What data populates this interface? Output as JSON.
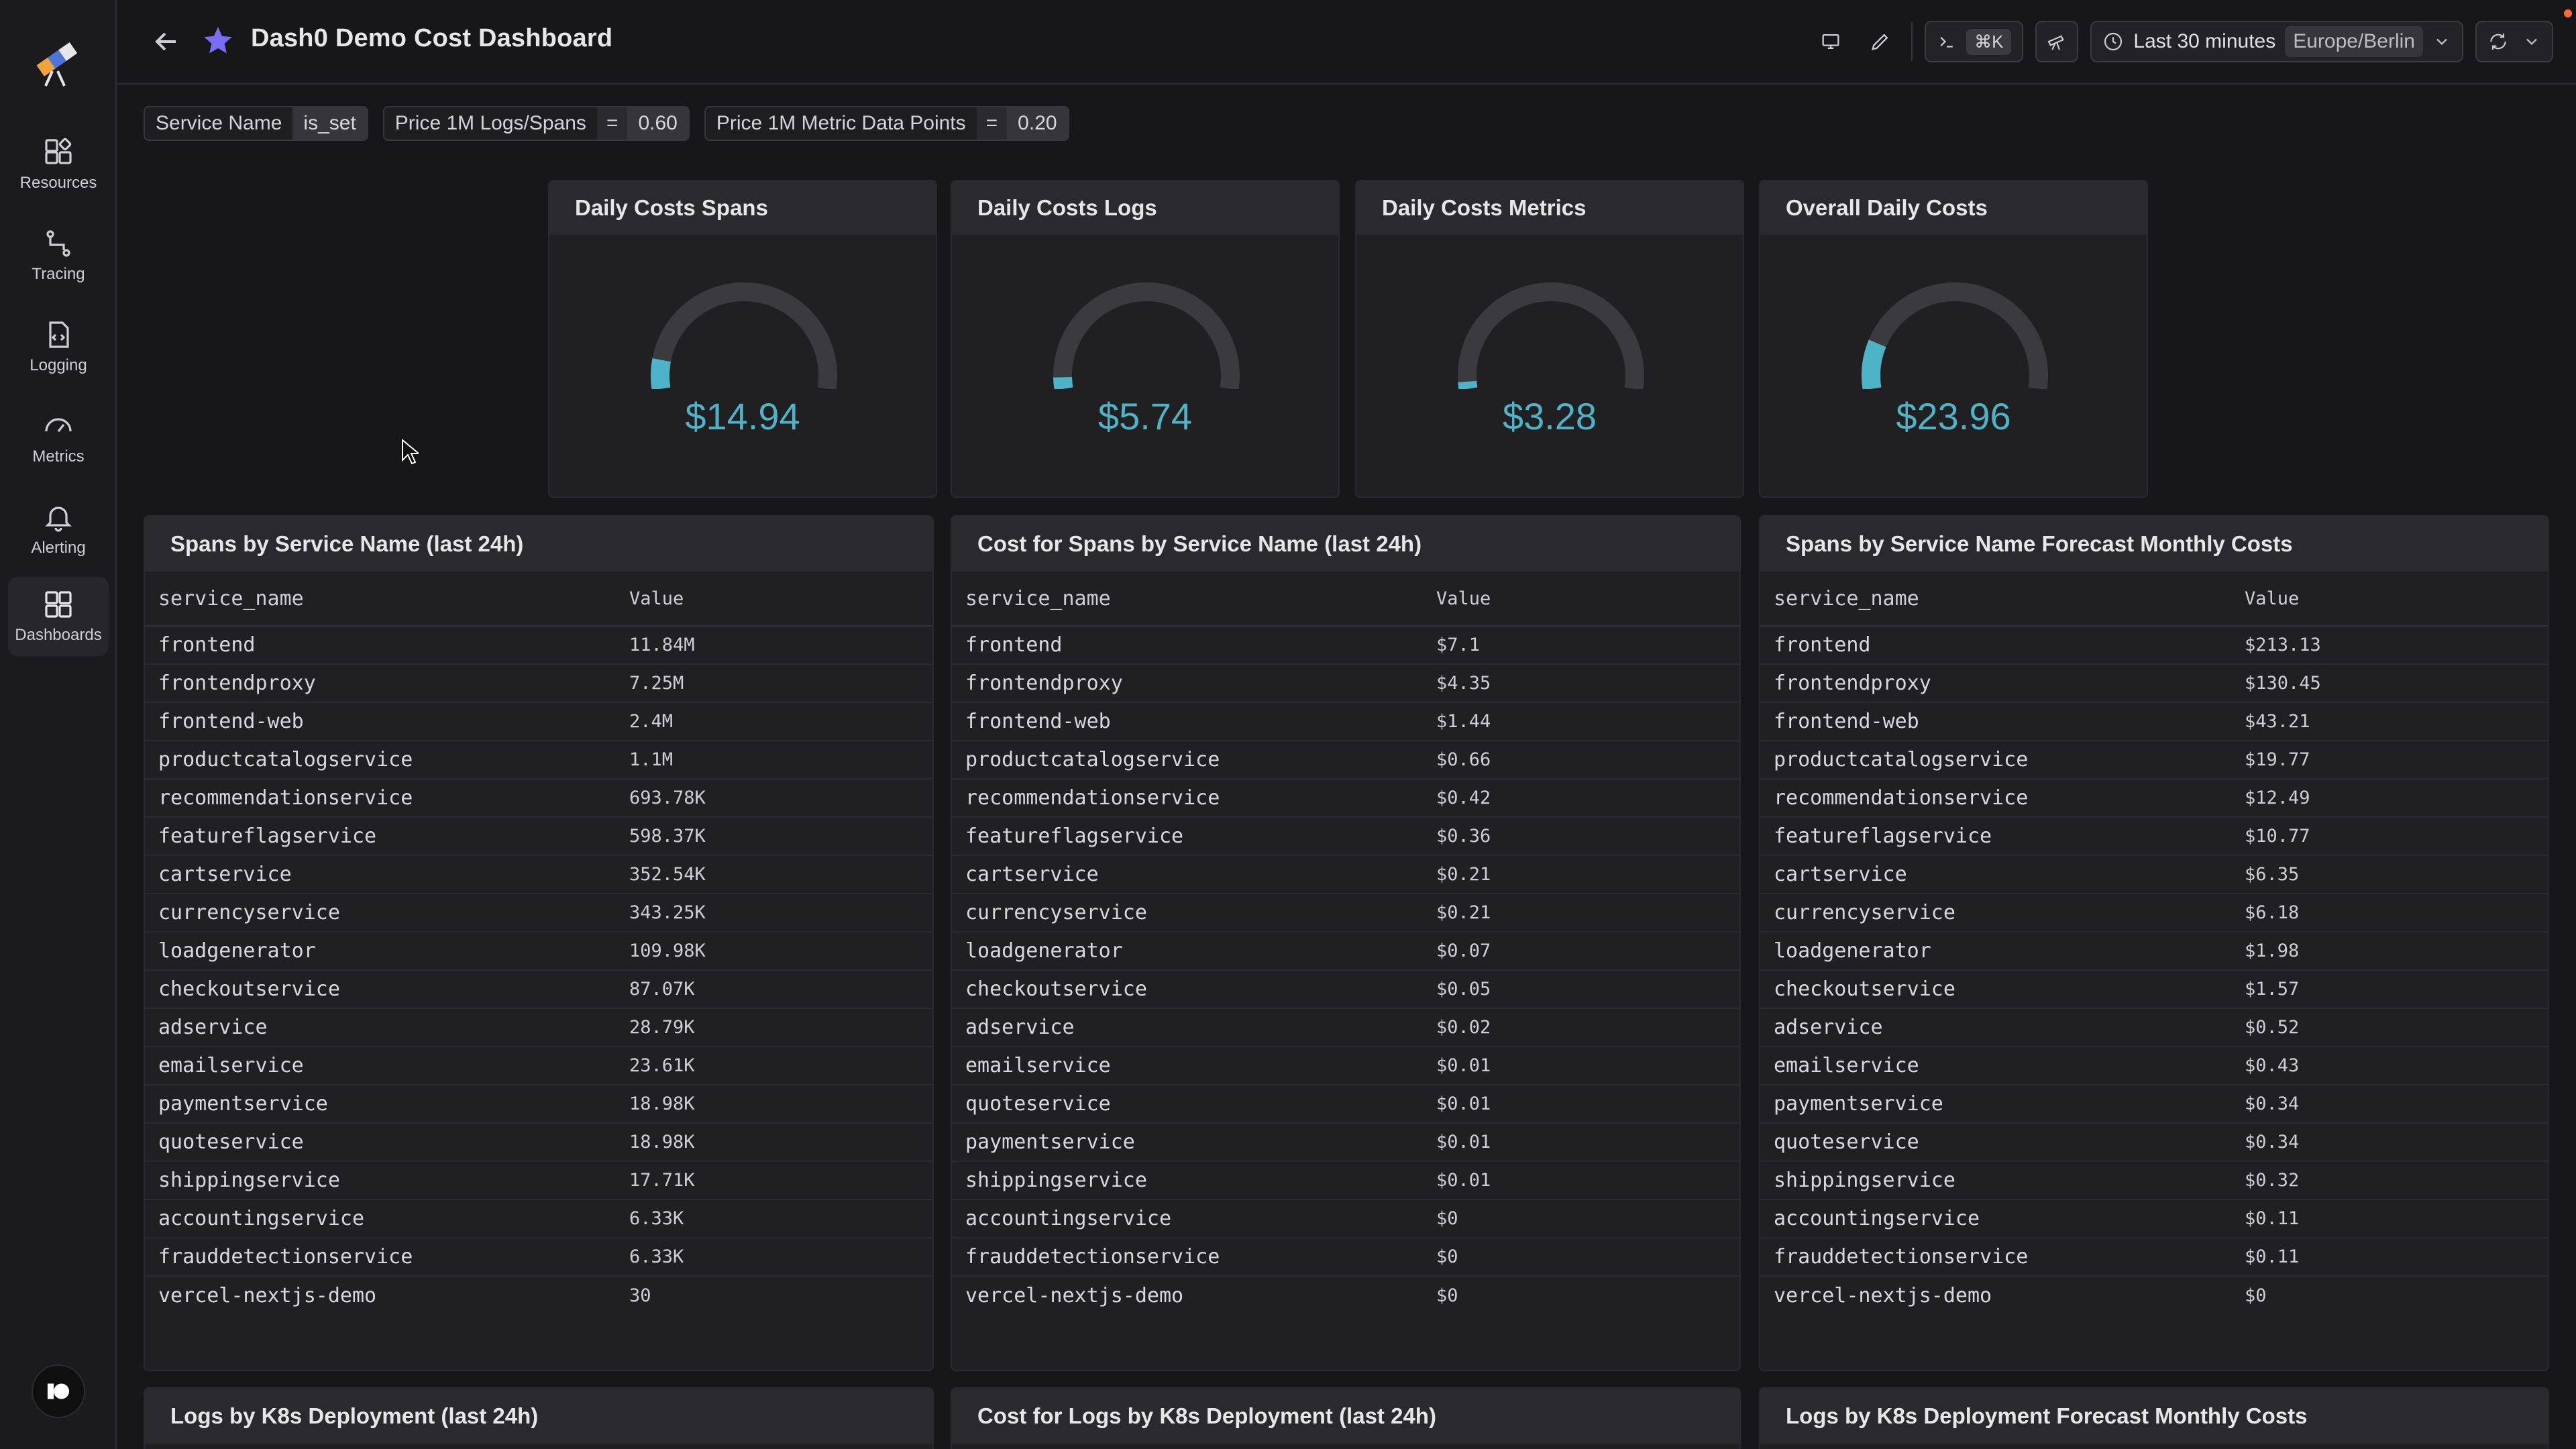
{
  "sidebar": {
    "items": [
      {
        "label": "Resources",
        "icon": "resources-icon"
      },
      {
        "label": "Tracing",
        "icon": "tracing-icon"
      },
      {
        "label": "Logging",
        "icon": "logging-icon"
      },
      {
        "label": "Metrics",
        "icon": "metrics-icon"
      },
      {
        "label": "Alerting",
        "icon": "alerting-icon"
      },
      {
        "label": "Dashboards",
        "icon": "dashboards-icon",
        "active": true
      }
    ]
  },
  "header": {
    "title": "Dash0 Demo Cost Dashboard",
    "shortcut": "⌘K",
    "time_range": "Last 30 minutes",
    "timezone": "Europe/Berlin"
  },
  "variables": [
    {
      "name": "Service Name",
      "op": "",
      "value": "is_set"
    },
    {
      "name": "Price 1M Logs/Spans",
      "op": "=",
      "value": "0.60"
    },
    {
      "name": "Price 1M Metric Data Points",
      "op": "=",
      "value": "0.20"
    }
  ],
  "gauges": [
    {
      "title": "Daily Costs Spans",
      "value": "$14.94",
      "fraction": 0.1
    },
    {
      "title": "Daily Costs Logs",
      "value": "$5.74",
      "fraction": 0.04
    },
    {
      "title": "Daily Costs Metrics",
      "value": "$3.28",
      "fraction": 0.025
    },
    {
      "title": "Overall Daily Costs",
      "value": "$23.96",
      "fraction": 0.16
    }
  ],
  "tables": [
    {
      "title": "Spans by Service Name (last 24h)",
      "col1": "service_name",
      "col2": "Value",
      "rows": [
        [
          "frontend",
          "11.84M"
        ],
        [
          "frontendproxy",
          "7.25M"
        ],
        [
          "frontend-web",
          "2.4M"
        ],
        [
          "productcatalogservice",
          "1.1M"
        ],
        [
          "recommendationservice",
          "693.78K"
        ],
        [
          "featureflagservice",
          "598.37K"
        ],
        [
          "cartservice",
          "352.54K"
        ],
        [
          "currencyservice",
          "343.25K"
        ],
        [
          "loadgenerator",
          "109.98K"
        ],
        [
          "checkoutservice",
          "87.07K"
        ],
        [
          "adservice",
          "28.79K"
        ],
        [
          "emailservice",
          "23.61K"
        ],
        [
          "paymentservice",
          "18.98K"
        ],
        [
          "quoteservice",
          "18.98K"
        ],
        [
          "shippingservice",
          "17.71K"
        ],
        [
          "accountingservice",
          "6.33K"
        ],
        [
          "frauddetectionservice",
          "6.33K"
        ],
        [
          "vercel-nextjs-demo",
          "30"
        ]
      ]
    },
    {
      "title": "Cost for Spans by Service Name (last 24h)",
      "col1": "service_name",
      "col2": "Value",
      "rows": [
        [
          "frontend",
          "$7.1"
        ],
        [
          "frontendproxy",
          "$4.35"
        ],
        [
          "frontend-web",
          "$1.44"
        ],
        [
          "productcatalogservice",
          "$0.66"
        ],
        [
          "recommendationservice",
          "$0.42"
        ],
        [
          "featureflagservice",
          "$0.36"
        ],
        [
          "cartservice",
          "$0.21"
        ],
        [
          "currencyservice",
          "$0.21"
        ],
        [
          "loadgenerator",
          "$0.07"
        ],
        [
          "checkoutservice",
          "$0.05"
        ],
        [
          "adservice",
          "$0.02"
        ],
        [
          "emailservice",
          "$0.01"
        ],
        [
          "quoteservice",
          "$0.01"
        ],
        [
          "paymentservice",
          "$0.01"
        ],
        [
          "shippingservice",
          "$0.01"
        ],
        [
          "accountingservice",
          "$0"
        ],
        [
          "frauddetectionservice",
          "$0"
        ],
        [
          "vercel-nextjs-demo",
          "$0"
        ]
      ]
    },
    {
      "title": "Spans by Service Name Forecast Monthly Costs",
      "col1": "service_name",
      "col2": "Value",
      "rows": [
        [
          "frontend",
          "$213.13"
        ],
        [
          "frontendproxy",
          "$130.45"
        ],
        [
          "frontend-web",
          "$43.21"
        ],
        [
          "productcatalogservice",
          "$19.77"
        ],
        [
          "recommendationservice",
          "$12.49"
        ],
        [
          "featureflagservice",
          "$10.77"
        ],
        [
          "cartservice",
          "$6.35"
        ],
        [
          "currencyservice",
          "$6.18"
        ],
        [
          "loadgenerator",
          "$1.98"
        ],
        [
          "checkoutservice",
          "$1.57"
        ],
        [
          "adservice",
          "$0.52"
        ],
        [
          "emailservice",
          "$0.43"
        ],
        [
          "paymentservice",
          "$0.34"
        ],
        [
          "quoteservice",
          "$0.34"
        ],
        [
          "shippingservice",
          "$0.32"
        ],
        [
          "accountingservice",
          "$0.11"
        ],
        [
          "frauddetectionservice",
          "$0.11"
        ],
        [
          "vercel-nextjs-demo",
          "$0"
        ]
      ]
    }
  ],
  "bottom_panels": [
    {
      "title": "Logs by K8s Deployment (last 24h)"
    },
    {
      "title": "Cost for Logs by K8s Deployment (last 24h)"
    },
    {
      "title": "Logs by K8s Deployment Forecast Monthly Costs"
    }
  ],
  "colors": {
    "accent": "#4fb3c7",
    "background": "#17171a",
    "panel": "#202023",
    "star": "#7b6cf6"
  }
}
